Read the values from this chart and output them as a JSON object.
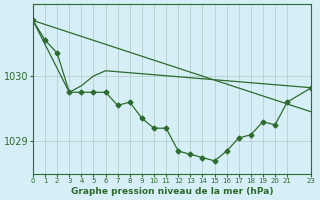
{
  "background_color": "#d6eff6",
  "plot_bg_color": "#d6eff6",
  "grid_color": "#b0c8c8",
  "line_color": "#2d6a2d",
  "marker_color": "#2d6a2d",
  "xlabel": "Graphe pression niveau de la mer (hPa)",
  "xlim": [
    0,
    23
  ],
  "ylim": [
    1028.5,
    1031.1
  ],
  "yticks": [
    1029,
    1030
  ],
  "ytick_labels": [
    "1029",
    "1030"
  ],
  "xticks": [
    0,
    1,
    2,
    3,
    4,
    5,
    6,
    7,
    8,
    9,
    10,
    11,
    12,
    13,
    14,
    15,
    16,
    17,
    18,
    19,
    20,
    21,
    23
  ],
  "line1": {
    "x": [
      0,
      1,
      2,
      3,
      4,
      5,
      6,
      7,
      8,
      9,
      10,
      11,
      12,
      13,
      14,
      15,
      16,
      17,
      18,
      19,
      20,
      21,
      23
    ],
    "y": [
      1030.85,
      1030.55,
      1030.35,
      1029.75,
      1029.75,
      1029.75,
      1029.75,
      1029.55,
      1029.6,
      1029.35,
      1029.2,
      1029.2,
      1028.85,
      1028.8,
      1028.75,
      1028.7,
      1028.85,
      1029.05,
      1029.1,
      1029.3,
      1029.25,
      1029.6,
      1029.82
    ]
  },
  "line2": {
    "x": [
      0,
      3,
      4,
      5,
      6,
      23
    ],
    "y": [
      1030.85,
      1029.75,
      1029.85,
      1030.0,
      1030.08,
      1029.82
    ]
  },
  "line3": {
    "x": [
      0,
      23
    ],
    "y": [
      1030.85,
      1029.45
    ]
  },
  "figsize": [
    3.2,
    2.0
  ],
  "dpi": 100
}
